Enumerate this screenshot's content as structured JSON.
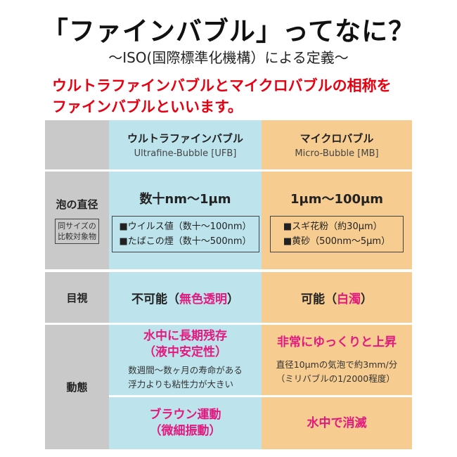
{
  "title": "「ファインバブル」ってなに？",
  "subtitle": "〜ISO(国際標準化機構）による定義〜",
  "lead": [
    "ウルトラファインバブルとマイクロバブルの相称を",
    "ファインバブルといいます。"
  ],
  "colors": {
    "label_bg": "#c9c9c9",
    "ufb_bg": "#bde4ec",
    "mb_bg": "#f6cc90",
    "accent_pink": "#e4197f",
    "lead_red": "#e60012"
  },
  "table": {
    "header": {
      "ufb": {
        "jp": "ウルトラファインバブル",
        "en": "Ultrafine-Bubble [UFB]"
      },
      "mb": {
        "jp": "マイクロバブル",
        "en": "Micro-Bubble [MB]"
      }
    },
    "diameter": {
      "label": "泡の直径",
      "sublabel": [
        "同サイズの",
        "比較対象物"
      ],
      "ufb": {
        "value": "数十nm〜1μm",
        "examples": [
          "■ウイルス値（数十〜100nm）",
          "■たばこの煙（数十〜500nm）"
        ]
      },
      "mb": {
        "value": "1μm〜100μm",
        "examples": [
          "■スギ花粉（約30μm）",
          "■黄砂（500nm〜5μm）"
        ]
      }
    },
    "visibility": {
      "label": "目視",
      "ufb": {
        "prefix": "不可能（",
        "highlight": "無色透明",
        "suffix": "）"
      },
      "mb": {
        "prefix": "可能（",
        "highlight": "白濁",
        "suffix": "）"
      }
    },
    "behavior": {
      "label": "動態",
      "ufb1": {
        "headline": [
          "水中に長期残存",
          "（液中安定性）"
        ],
        "notes": [
          "数週間〜数ヶ月の寿命がある",
          "浮力よりも粘性力が大きい"
        ]
      },
      "mb1": {
        "headline": [
          "非常にゆっくりと上昇"
        ],
        "notes": [
          "直径10μmの気泡で約3mm/分",
          "（ミリバブルの1/2000程度）"
        ]
      },
      "ufb2": {
        "headline": [
          "ブラウン運動",
          "（微細振動）"
        ]
      },
      "mb2": {
        "headline": [
          "水中で消滅"
        ]
      }
    }
  }
}
